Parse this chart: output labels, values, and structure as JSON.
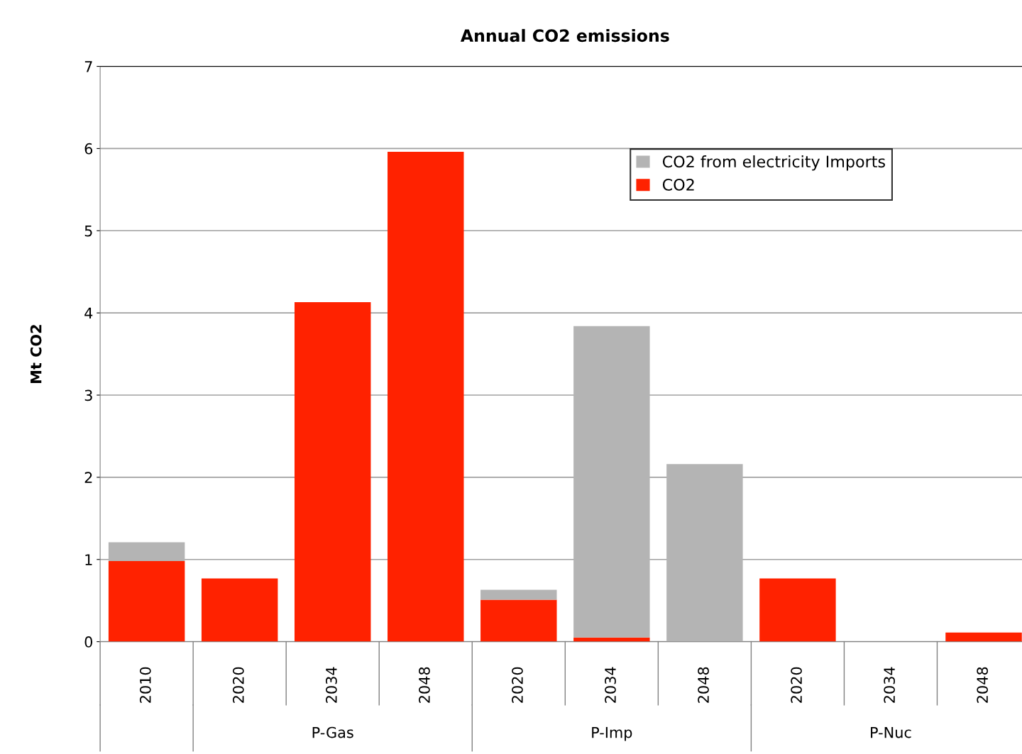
{
  "chart_data": {
    "type": "bar",
    "title": "Annual CO2 emissions",
    "ylabel": "Mt CO2",
    "stacked": true,
    "categories": [
      "2010",
      "2020",
      "2034",
      "2048",
      "2020",
      "2034",
      "2048",
      "2020",
      "2034",
      "2048"
    ],
    "series": [
      {
        "name": "CO2",
        "color": "#ff2200",
        "values": [
          0.98,
          0.77,
          4.13,
          5.96,
          0.51,
          0.05,
          0,
          0.77,
          0,
          0.11
        ]
      },
      {
        "name": "CO2 from electricity Imports",
        "color": "#b4b4b4",
        "values": [
          0.23,
          0,
          0,
          0,
          0.12,
          3.79,
          2.16,
          0,
          0,
          0
        ]
      }
    ],
    "ylim": [
      0,
      7
    ],
    "yticks": [
      0,
      1,
      2,
      3,
      4,
      5,
      6,
      7
    ],
    "grid": "y",
    "legend": "top right",
    "annotations": [
      "P-Gas",
      "P-Imp",
      "P-Nuc"
    ]
  }
}
